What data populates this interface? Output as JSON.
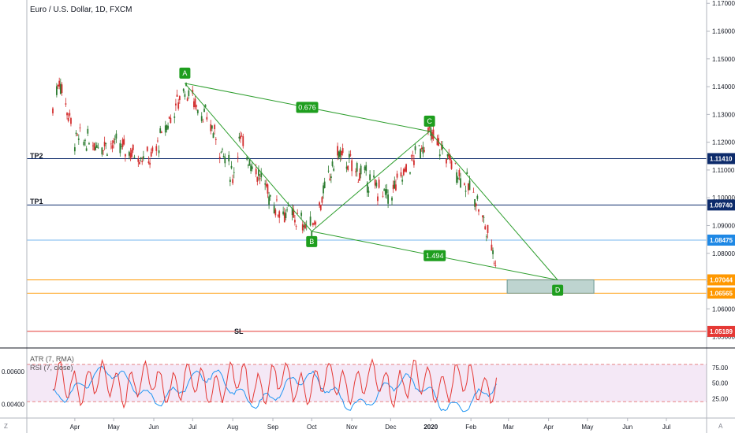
{
  "header": {
    "title": "Euro / U.S. Dollar, 1D, FXCM"
  },
  "levels": {
    "tp2": {
      "label": "TP2",
      "value": 1.1141,
      "tag": "1.11410",
      "color": "#0d2b6b"
    },
    "tp1": {
      "label": "TP1",
      "value": 1.0974,
      "tag": "1.09740",
      "color": "#0d2b6b"
    },
    "current": {
      "value": 1.08475,
      "tag": "1.08475",
      "color": "#1e88e5"
    },
    "zone_top": {
      "value": 1.07044,
      "tag": "1.07044",
      "color": "#ff9800"
    },
    "zone_bottom": {
      "value": 1.06565,
      "tag": "1.06565",
      "color": "#ff9800"
    },
    "sl": {
      "label": "SL",
      "value": 1.05189,
      "tag": "1.05189",
      "color": "#e53935"
    }
  },
  "indicators": {
    "atr_label": "ATR (7, RMA)",
    "rsi_label": "RSI (7, close)",
    "left_ticks": [
      "0.00600",
      "0.00400"
    ],
    "right_ticks": [
      "75.00",
      "50.00",
      "25.00"
    ]
  },
  "chart_data": {
    "type": "candlestick",
    "title": "Euro / U.S. Dollar, 1D, FXCM",
    "ylim": [
      1.0462,
      1.1712
    ],
    "y_ticks": [
      "1.17000",
      "1.16000",
      "1.15000",
      "1.14000",
      "1.13000",
      "1.12000",
      "1.11000",
      "1.10000",
      "1.09000",
      "1.08000",
      "1.07000",
      "1.06000",
      "1.05000"
    ],
    "x_ticks": [
      "Apr",
      "May",
      "Jun",
      "Jul",
      "Aug",
      "Sep",
      "Oct",
      "Nov",
      "Dec",
      "2020",
      "Feb",
      "Mar",
      "Apr",
      "May",
      "Jun",
      "Jul"
    ],
    "price_path_approx": [
      {
        "date": "2019-03-15",
        "close": 1.132
      },
      {
        "date": "2019-03-20",
        "close": 1.143
      },
      {
        "date": "2019-04-01",
        "close": 1.121
      },
      {
        "date": "2019-05-01",
        "close": 1.119
      },
      {
        "date": "2019-05-30",
        "close": 1.114
      },
      {
        "date": "2019-06-25",
        "close": 1.14
      },
      {
        "date": "2019-07-15",
        "close": 1.126
      },
      {
        "date": "2019-08-01",
        "close": 1.108
      },
      {
        "date": "2019-08-06",
        "close": 1.121
      },
      {
        "date": "2019-09-03",
        "close": 1.097
      },
      {
        "date": "2019-10-01",
        "close": 1.089
      },
      {
        "date": "2019-10-21",
        "close": 1.116
      },
      {
        "date": "2019-11-29",
        "close": 1.1
      },
      {
        "date": "2019-12-31",
        "close": 1.123
      },
      {
        "date": "2020-01-15",
        "close": 1.114
      },
      {
        "date": "2020-02-05",
        "close": 1.1
      },
      {
        "date": "2020-02-20",
        "close": 1.078
      },
      {
        "date": "2020-02-21",
        "close": 1.085
      }
    ],
    "pattern": {
      "points": [
        {
          "label": "A",
          "date": "2019-06-25",
          "price": 1.1412
        },
        {
          "label": "B",
          "date": "2019-10-01",
          "price": 1.0879
        },
        {
          "label": "C",
          "date": "2019-12-31",
          "price": 1.1239
        },
        {
          "label": "D",
          "date": "2020-04-08",
          "price": 1.0704
        }
      ],
      "ratios": [
        {
          "label": "0.676",
          "between": [
            "A",
            "C"
          ]
        },
        {
          "label": "1.494",
          "between": [
            "B",
            "D"
          ]
        }
      ],
      "color": "#2e9e2e"
    },
    "target_zone": {
      "top": 1.07044,
      "bottom": 1.06565,
      "from": "2020-02-29",
      "to": "2020-05-06"
    },
    "atr": {
      "name": "ATR (7, RMA)",
      "ylim": [
        0.0032,
        0.0074
      ],
      "ticks": [
        0.006,
        0.004
      ],
      "color": "#2196f3"
    },
    "rsi": {
      "name": "RSI (7, close)",
      "ylim": [
        0,
        100
      ],
      "bands": [
        80,
        20
      ],
      "ticks": [
        75,
        50,
        25
      ],
      "color": "#e53935"
    }
  }
}
